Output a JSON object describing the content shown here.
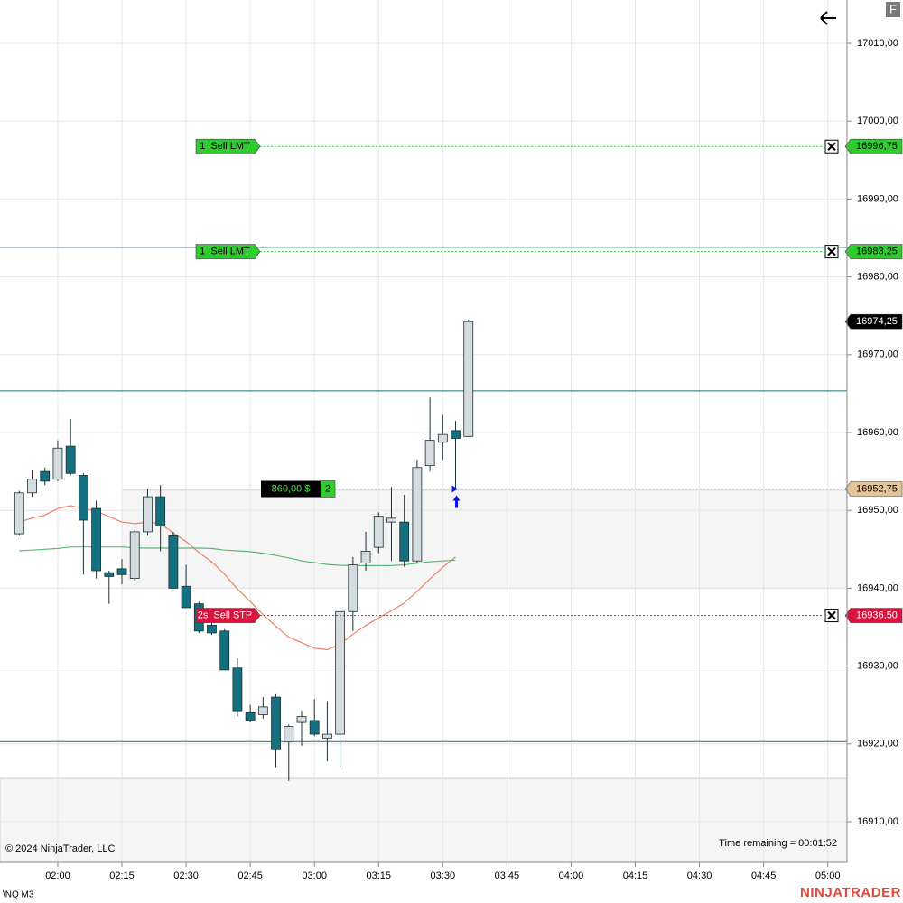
{
  "chart_data": {
    "type": "candlestick",
    "x": [
      "01:51",
      "01:54",
      "01:57",
      "02:00",
      "02:03",
      "02:06",
      "02:09",
      "02:12",
      "02:15",
      "02:18",
      "02:21",
      "02:24",
      "02:27",
      "02:30",
      "02:33",
      "02:36",
      "02:39",
      "02:42",
      "02:45",
      "02:48",
      "02:51",
      "02:54",
      "02:57",
      "03:00",
      "03:03",
      "03:06",
      "03:09",
      "03:12",
      "03:15",
      "03:18",
      "03:21",
      "03:24",
      "03:27",
      "03:30",
      "03:33",
      "03:36"
    ],
    "open": [
      16947,
      16952.25,
      16955,
      16954,
      16958.25,
      16954.5,
      16950.25,
      16942,
      16942.5,
      16941.25,
      16947.25,
      16951.75,
      16946.75,
      16940.25,
      16938,
      16935.25,
      16934.5,
      16929.75,
      16924,
      16923.75,
      16926,
      16920.25,
      16922.75,
      16923,
      16920.75,
      16921.25,
      16937,
      16943.25,
      16945.25,
      16948.5,
      16948.5,
      16943.5,
      16955.75,
      16958.75,
      16960.25,
      16959.5
    ],
    "high": [
      16952.5,
      16955.25,
      16955.5,
      16959,
      16961.75,
      16954.75,
      16951.25,
      16942.25,
      16943.75,
      16947.5,
      16952.75,
      16953.25,
      16947.25,
      16943,
      16938.25,
      16936,
      16934.75,
      16931,
      16925,
      16926,
      16926.5,
      16922.5,
      16924.25,
      16925.75,
      16925.5,
      16937.25,
      16944,
      16947.25,
      16949.75,
      16953,
      16952,
      16956.5,
      16964.5,
      16962.25,
      16961.5,
      16974.5
    ],
    "low": [
      16946.75,
      16951.75,
      16953.25,
      16953.75,
      16954.5,
      16941.75,
      16941.25,
      16938,
      16940.5,
      16941,
      16946.75,
      16944.75,
      16940,
      16937.5,
      16934.25,
      16934,
      16929.5,
      16923.5,
      16922.75,
      16923.25,
      16917,
      16915.25,
      16919.75,
      16921,
      16917.75,
      16917,
      16934.5,
      16942.25,
      16944.5,
      16943.5,
      16942.75,
      16943.25,
      16955,
      16956.5,
      16952.75,
      16959.5
    ],
    "close": [
      16952.25,
      16954,
      16953.75,
      16958,
      16954.75,
      16948.75,
      16942.25,
      16941.5,
      16941.75,
      16947.25,
      16951.75,
      16948,
      16940,
      16937.5,
      16934.5,
      16934.25,
      16929.5,
      16924.25,
      16923,
      16924.75,
      16919.25,
      16922.25,
      16923.5,
      16921.25,
      16921.25,
      16937,
      16943,
      16944.75,
      16949.25,
      16949,
      16943.5,
      16955.5,
      16959,
      16959.75,
      16959.25,
      16974.25
    ],
    "up_color": "#d5dcdf",
    "down_color": "#14707e",
    "moving_averages": [
      {
        "color": "#f08068",
        "values": [
          16948.5,
          16949,
          16949.4,
          16950.25,
          16950.6,
          16950.25,
          16949.9,
          16949.2,
          16948.5,
          16948.3,
          16948.5,
          16948.3,
          16947.1,
          16946,
          16944.6,
          16943.4,
          16941.8,
          16939.9,
          16938.3,
          16936.6,
          16935.1,
          16933.7,
          16933,
          16932.3,
          16932.1,
          16932.8,
          16934.1,
          16935.2,
          16936.2,
          16937.1,
          16938.1,
          16939.6,
          16941.2,
          16942.7,
          16944,
          null
        ]
      },
      {
        "color": "#5cb878",
        "values": [
          16944.8,
          16944.9,
          16945,
          16945.1,
          16945.3,
          16945.3,
          16945.3,
          16945.3,
          16945.3,
          16945.2,
          16945.15,
          16945.15,
          16945.15,
          16945.15,
          16945.15,
          16945.1,
          16944.9,
          16944.8,
          16944.7,
          16944.5,
          16944.2,
          16943.9,
          16943.5,
          16943.3,
          16943.05,
          16942.95,
          16942.9,
          16942.9,
          16942.9,
          16942.9,
          16943,
          16943.2,
          16943.4,
          16943.5,
          16943.6,
          null
        ]
      }
    ],
    "xlim": [
      "01:46:30",
      "05:04:30"
    ],
    "xticks": [
      "02:00",
      "02:15",
      "02:30",
      "02:45",
      "03:00",
      "03:15",
      "03:30",
      "03:45",
      "04:00",
      "04:15",
      "04:30",
      "04:45",
      "05:00"
    ],
    "ylim": [
      16904.78,
      17015.57
    ],
    "yticks": [
      {
        "value": 16910,
        "label": "16910,00"
      },
      {
        "value": 16920,
        "label": "16920,00"
      },
      {
        "value": 16930,
        "label": "16930,00"
      },
      {
        "value": 16940,
        "label": "16940,00"
      },
      {
        "value": 16950,
        "label": "16950,00"
      },
      {
        "value": 16960,
        "label": "16960,00"
      },
      {
        "value": 16970,
        "label": "16970,00"
      },
      {
        "value": 16980,
        "label": "16980,00"
      },
      {
        "value": 16990,
        "label": "16990,00"
      },
      {
        "value": 17000,
        "label": "17000,00"
      },
      {
        "value": 17010,
        "label": "17010,00"
      }
    ],
    "grid": true,
    "level_color": "#1f6f78",
    "levels": [
      16983.8,
      16965.35,
      16920.3
    ],
    "zones": [
      {
        "start": "02:15",
        "low": 16940,
        "high": 16952.6
      },
      {
        "start": "01:46:30",
        "low": 16904.78,
        "high": 16915.55
      }
    ],
    "orders": [
      {
        "label": "1  Sell LMT",
        "color": "#2ecc2e",
        "price": {
          "value": 16996.75,
          "label": "16996,75"
        }
      },
      {
        "label": "1  Sell LMT",
        "color": "#2ecc2e",
        "price": {
          "value": 16983.25,
          "label": "16983,25"
        }
      },
      {
        "label": "2s  Sell STP",
        "color": "#d6163e",
        "price": {
          "value": 16936.5,
          "label": "16936,50"
        }
      }
    ],
    "position": {
      "pnl": "860,00 $",
      "quantity": "2",
      "color": "#e3c59a",
      "price": {
        "value": 16952.75,
        "label": "16952,75"
      }
    },
    "execution": {
      "time": "03:33",
      "price": 16952.75,
      "color": "#0a14e6"
    },
    "last_price": {
      "value": 16974.25,
      "label": "16974,25"
    },
    "copyright": "© 2024 NinjaTrader, LLC",
    "time_remaining": "Time remaining = 00:01:52",
    "instrument": "\\NQ M3",
    "logo": {
      "part1": "NINJ",
      "part2": "ATRADER"
    },
    "format_button": "F"
  }
}
